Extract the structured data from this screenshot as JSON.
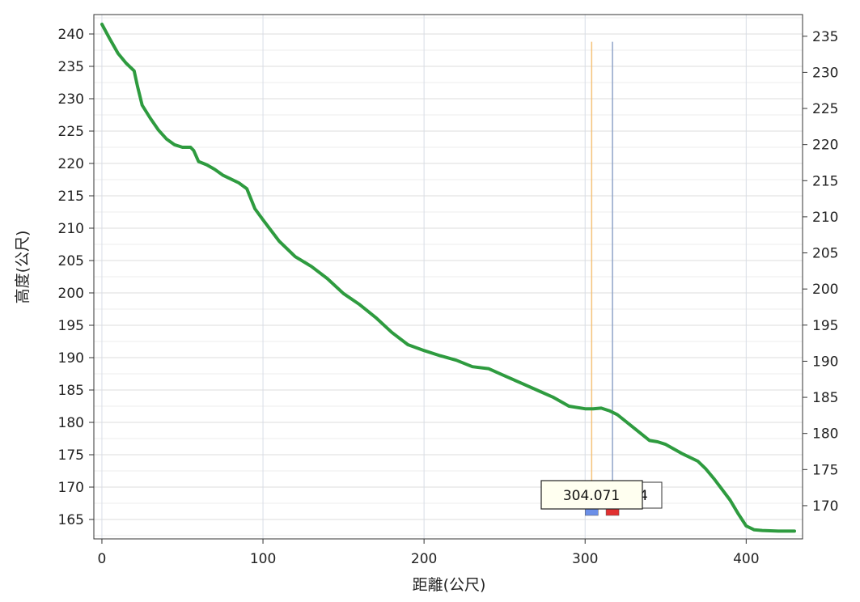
{
  "chart_data": {
    "type": "line",
    "title": "",
    "xlabel": "距離(公尺)",
    "ylabel": "高度(公尺)",
    "xlim": [
      -5,
      435
    ],
    "ylim": [
      162,
      243
    ],
    "y2lim": [
      165.4,
      238.0
    ],
    "xticks": [
      0,
      100,
      200,
      300,
      400
    ],
    "yticks": [
      165,
      170,
      175,
      180,
      185,
      190,
      195,
      200,
      205,
      210,
      215,
      220,
      225,
      230,
      235,
      240
    ],
    "y2ticks": [
      170,
      175,
      180,
      185,
      190,
      195,
      200,
      205,
      210,
      215,
      220,
      225,
      230,
      235
    ],
    "grid": true,
    "series": [
      {
        "color": "#2e9b3f",
        "x": [
          0,
          5,
          10,
          15,
          20,
          22,
          25,
          30,
          35,
          40,
          45,
          50,
          55,
          57,
          60,
          65,
          70,
          75,
          80,
          85,
          90,
          95,
          100,
          110,
          120,
          130,
          140,
          150,
          160,
          170,
          180,
          190,
          200,
          210,
          220,
          230,
          240,
          250,
          260,
          270,
          280,
          290,
          300,
          305,
          310,
          315,
          320,
          330,
          340,
          345,
          350,
          360,
          370,
          375,
          380,
          390,
          395,
          400,
          405,
          410,
          420,
          430
        ],
        "values": [
          241.5,
          239.2,
          237.0,
          235.5,
          234.3,
          232.0,
          229.0,
          227.0,
          225.2,
          223.8,
          222.9,
          222.5,
          222.5,
          222.0,
          220.3,
          219.8,
          219.1,
          218.2,
          217.6,
          217.0,
          216.1,
          213.0,
          211.3,
          208.0,
          205.6,
          204.1,
          202.2,
          199.9,
          198.2,
          196.2,
          193.9,
          192.0,
          191.1,
          190.3,
          189.6,
          188.6,
          188.3,
          187.2,
          186.1,
          185.0,
          183.9,
          182.5,
          182.1,
          182.1,
          182.2,
          181.8,
          181.2,
          179.2,
          177.2,
          177.0,
          176.6,
          175.2,
          174.0,
          172.8,
          171.3,
          168.0,
          165.9,
          164.0,
          163.4,
          163.3,
          163.2,
          163.2
        ]
      }
    ],
    "markers": [
      {
        "x": 304.071,
        "color": "#f5c27a",
        "handle_color": "#6b8fe8"
      },
      {
        "x": 317,
        "color": "#8fa4c8",
        "handle_color": "#e23030"
      }
    ],
    "tooltip": {
      "text": "304.071",
      "behind_text": "4"
    }
  }
}
